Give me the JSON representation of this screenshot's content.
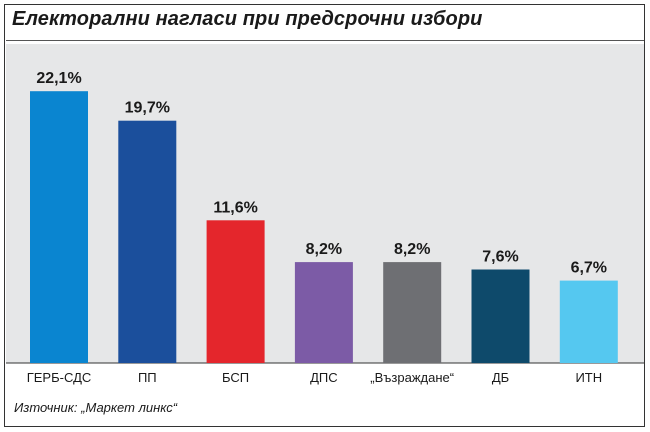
{
  "title": "Електорални нагласи при предсрочни избори",
  "source": "Източник: „Маркет линкс“",
  "chart_data": {
    "type": "bar",
    "categories": [
      "ГЕРБ-СДС",
      "ПП",
      "БСП",
      "ДПС",
      "„Възраждане“",
      "ДБ",
      "ИТН"
    ],
    "values": [
      22.1,
      19.7,
      11.6,
      8.2,
      8.2,
      7.6,
      6.7
    ],
    "value_labels": [
      "22,1%",
      "19,7%",
      "11,6%",
      "8,2%",
      "8,2%",
      "7,6%",
      "6,7%"
    ],
    "colors": [
      "#0a85d0",
      "#1b4f9c",
      "#e4262c",
      "#7c5ba6",
      "#6e6f73",
      "#0e4a6b",
      "#55c8f0"
    ],
    "ylim": [
      0,
      25
    ],
    "grid": false,
    "legend": "none"
  }
}
